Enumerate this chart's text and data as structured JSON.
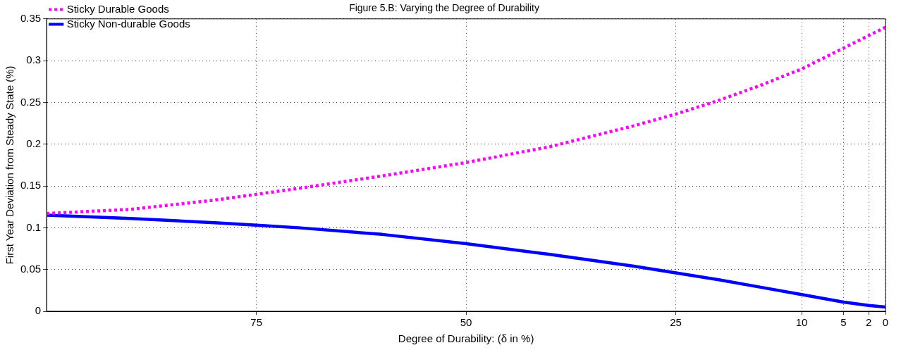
{
  "chart_data": {
    "type": "line",
    "title": "Figure 5.B: Varying the Degree of Durability",
    "xlabel": "Degree of Durability: (δ in %)",
    "ylabel": "First Year Deviation from Steady State (%)",
    "x": [
      100,
      90,
      80,
      75,
      70,
      60,
      50,
      40,
      30,
      25,
      20,
      15,
      10,
      5,
      2,
      0
    ],
    "series": [
      {
        "name": "Sticky Durable Goods",
        "color": "#ff00ff",
        "line_style": "dotted",
        "values": [
          0.117,
          0.122,
          0.133,
          0.14,
          0.147,
          0.162,
          0.178,
          0.197,
          0.222,
          0.236,
          0.252,
          0.27,
          0.29,
          0.315,
          0.33,
          0.34
        ]
      },
      {
        "name": "Sticky Non-durable Goods",
        "color": "#0000ff",
        "line_style": "solid",
        "values": [
          0.115,
          0.111,
          0.106,
          0.103,
          0.1,
          0.092,
          0.081,
          0.068,
          0.054,
          0.046,
          0.038,
          0.029,
          0.02,
          0.011,
          0.007,
          0.005
        ]
      }
    ],
    "xlim": [
      100,
      0
    ],
    "xticks": [
      75,
      50,
      25,
      10,
      5,
      2,
      0
    ],
    "ylim": [
      0,
      0.35
    ],
    "yticks": [
      0,
      0.05,
      0.1,
      0.15,
      0.2,
      0.25,
      0.3,
      0.35
    ],
    "grid": true,
    "legend": "top left",
    "marker": "none"
  }
}
